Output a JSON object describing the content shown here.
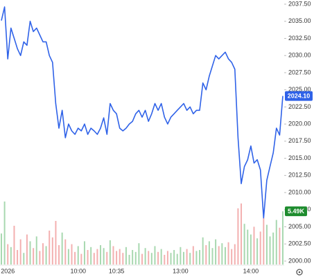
{
  "chart_data": {
    "type": "line",
    "categories": [
      null,
      null,
      "2026",
      null,
      null,
      null,
      null,
      null,
      null,
      null,
      null,
      null,
      null,
      null,
      null,
      null,
      null,
      null,
      null,
      null,
      null,
      null,
      null,
      null,
      "10:00",
      null,
      null,
      null,
      null,
      null,
      null,
      null,
      null,
      null,
      null,
      null,
      "10:35",
      null,
      null,
      null,
      null,
      null,
      null,
      null,
      null,
      null,
      null,
      null,
      null,
      null,
      null,
      null,
      null,
      null,
      null,
      null,
      "13:00",
      null,
      null,
      null,
      null,
      null,
      null,
      null,
      null,
      null,
      null,
      null,
      null,
      null,
      null,
      null,
      null,
      null,
      null,
      null,
      null,
      null,
      "14:00",
      null,
      null,
      null,
      null,
      null,
      null,
      null,
      null,
      null,
      null
    ],
    "values": [
      2035.1,
      2037.1,
      2029.5,
      2034,
      2032.5,
      2031,
      2030,
      2032,
      2031.5,
      2035,
      2033.5,
      2034,
      2033,
      2032,
      2032,
      2030,
      2029,
      2023,
      2019.4,
      2022,
      2018,
      2020,
      2019,
      2018.5,
      2019.4,
      2019,
      2020,
      2018.5,
      2019.4,
      2019,
      2018.5,
      2019.4,
      2020.9,
      2018.5,
      2023,
      2022,
      2021.5,
      2019.4,
      2019,
      2019.4,
      2020,
      2020.4,
      2021.5,
      2022,
      2021,
      2022,
      2020.4,
      2021.5,
      2023,
      2022,
      2023,
      2021,
      2020,
      2021,
      2021.5,
      2022,
      2022.5,
      2023,
      2022,
      2022.5,
      2021.5,
      2022,
      2022,
      2026,
      2025,
      2027,
      2028.5,
      2030,
      2029.5,
      2030,
      2030.5,
      2029.5,
      2029,
      2028,
      2018,
      2011.3,
      2013.8,
      2014.8,
      2016.8,
      2014.3,
      2014.8,
      2013.3,
      2006.3,
      2011.8,
      2013.8,
      2015.8,
      2019.4,
      2018.4,
      2024.1
    ],
    "color": "#2f62e8",
    "ylim": [
      2000,
      2037.5
    ],
    "yticks": [
      {
        "value": 2000,
        "label": "2000.00"
      },
      {
        "value": 2002.5,
        "label": "2002.50"
      },
      {
        "value": 2005,
        "label": "2005.00"
      },
      {
        "value": 2007.5,
        "label": "2007.50"
      },
      {
        "value": 2010,
        "label": "2010.00"
      },
      {
        "value": 2012.5,
        "label": "2012.50"
      },
      {
        "value": 2015,
        "label": "2015.00"
      },
      {
        "value": 2017.5,
        "label": "2017.50"
      },
      {
        "value": 2020,
        "label": "2020.00"
      },
      {
        "value": 2022.5,
        "label": "2022.50"
      },
      {
        "value": 2025,
        "label": "2025.00"
      },
      {
        "value": 2027.5,
        "label": "2027.50"
      },
      {
        "value": 2030,
        "label": "2030.00"
      },
      {
        "value": 2032.5,
        "label": "2032.50"
      },
      {
        "value": 2035,
        "label": "2035.00"
      },
      {
        "value": 2037.5,
        "label": "2037.50"
      }
    ],
    "grid": false,
    "price_tag": {
      "value": 2024.1,
      "label": "2024.10",
      "color": "#2f62e8"
    },
    "volume": {
      "values": [
        3.2,
        6.5,
        2.1,
        1.8,
        4.0,
        1.5,
        2.6,
        1.2,
        3.1,
        2.4,
        1.7,
        2.9,
        1.4,
        2.2,
        1.9,
        3.5,
        2.8,
        4.5,
        2.0,
        3.3,
        2.6,
        1.6,
        2.1,
        1.3,
        1.9,
        1.1,
        2.4,
        1.5,
        1.8,
        1.2,
        1.6,
        2.0,
        1.7,
        1.3,
        2.5,
        1.9,
        1.4,
        1.6,
        1.2,
        1.8,
        1.0,
        1.5,
        1.3,
        2.2,
        1.1,
        1.7,
        1.4,
        1.2,
        1.9,
        1.3,
        1.6,
        1.0,
        1.4,
        1.2,
        1.5,
        1.1,
        1.8,
        1.3,
        1.6,
        1.2,
        1.9,
        1.4,
        1.5,
        2.8,
        2.0,
        2.4,
        1.7,
        2.6,
        1.9,
        2.2,
        1.8,
        2.3,
        1.6,
        2.1,
        5.8,
        6.3,
        4.2,
        3.6,
        3.1,
        3.9,
        2.7,
        3.4,
        4.8,
        4.1,
        2.9,
        3.3,
        4.6,
        3.8,
        5.49
      ],
      "up_color": "#a8d8b0",
      "down_color": "#f3b0b0"
    },
    "volume_tag": {
      "value": 5.49,
      "label": "5.49K",
      "color": "#1e8c2e"
    }
  }
}
